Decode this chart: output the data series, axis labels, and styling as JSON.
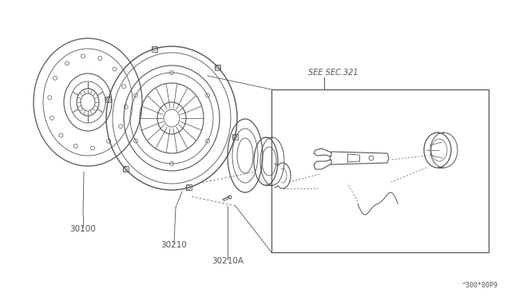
{
  "background_color": "#ffffff",
  "line_color": "#555555",
  "line_color_dark": "#333333",
  "diagram_code": "^300*00P9",
  "figsize": [
    6.4,
    3.72
  ],
  "dpi": 100
}
